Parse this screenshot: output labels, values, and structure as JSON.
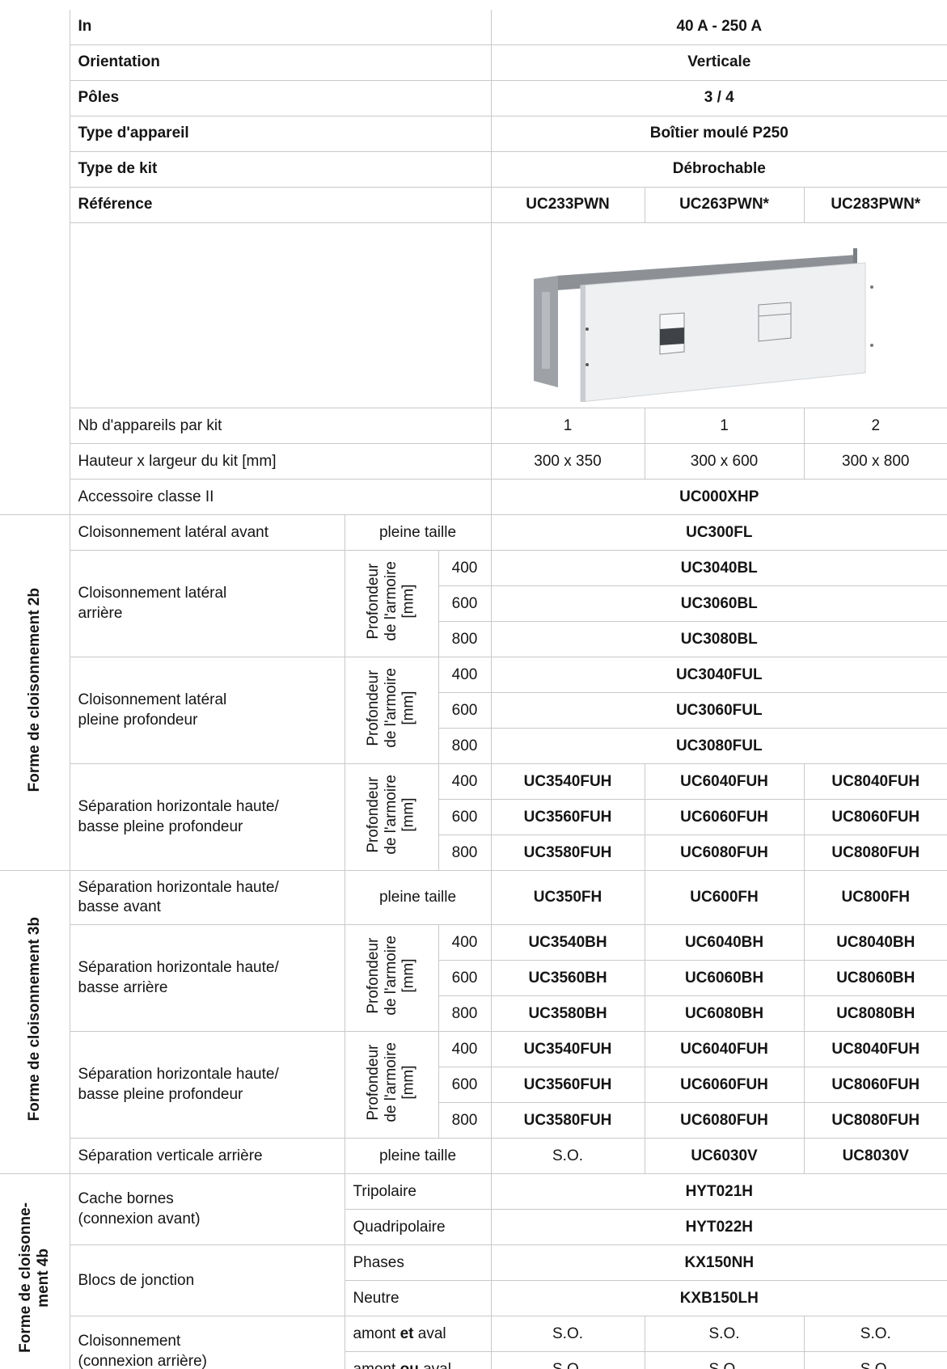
{
  "specs": [
    {
      "label": "In",
      "value": "40 A - 250 A"
    },
    {
      "label": "Orientation",
      "value": "Verticale"
    },
    {
      "label": "Pôles",
      "value": "3 / 4"
    },
    {
      "label": "Type d'appareil",
      "value": "Boîtier moulé P250"
    },
    {
      "label": "Type de kit",
      "value": "Débrochable"
    }
  ],
  "reference": {
    "label": "Référence",
    "values": [
      "UC233PWN",
      "UC263PWN*",
      "UC283PWN*"
    ]
  },
  "kit_rows": [
    {
      "label": "Nb d'appareils par kit",
      "values": [
        "1",
        "1",
        "2"
      ]
    },
    {
      "label": "Hauteur x largeur du kit [mm]",
      "values": [
        "300 x 350",
        "300 x 600",
        "300 x 800"
      ]
    }
  ],
  "accessory": {
    "label": "Accessoire classe II",
    "value": "UC000XHP"
  },
  "full_size": "pleine taille",
  "depth_label": "Profondeur\nde l'armoire\n[mm]",
  "depths": [
    "400",
    "600",
    "800"
  ],
  "form_2b": {
    "title": "Forme de cloisonnement 2b",
    "front_lateral": {
      "label": "Cloisonnement latéral avant",
      "value": "UC300FL"
    },
    "rear_lateral": {
      "label": "Cloisonnement latéral\narrière",
      "values": [
        "UC3040BL",
        "UC3060BL",
        "UC3080BL"
      ]
    },
    "full_lateral": {
      "label": "Cloisonnement latéral\npleine profondeur",
      "values": [
        "UC3040FUL",
        "UC3060FUL",
        "UC3080FUL"
      ]
    },
    "horizontal_full": {
      "label": "Séparation horizontale haute/\nbasse pleine profondeur",
      "values": [
        [
          "UC3540FUH",
          "UC6040FUH",
          "UC8040FUH"
        ],
        [
          "UC3560FUH",
          "UC6060FUH",
          "UC8060FUH"
        ],
        [
          "UC3580FUH",
          "UC6080FUH",
          "UC8080FUH"
        ]
      ]
    }
  },
  "form_3b": {
    "title": "Forme de cloisonnement 3b",
    "front_horizontal": {
      "label": "Séparation horizontale haute/\nbasse avant",
      "values": [
        "UC350FH",
        "UC600FH",
        "UC800FH"
      ]
    },
    "rear_horizontal": {
      "label": "Séparation horizontale haute/\nbasse arrière",
      "values": [
        [
          "UC3540BH",
          "UC6040BH",
          "UC8040BH"
        ],
        [
          "UC3560BH",
          "UC6060BH",
          "UC8060BH"
        ],
        [
          "UC3580BH",
          "UC6080BH",
          "UC8080BH"
        ]
      ]
    },
    "horizontal_full": {
      "label": "Séparation horizontale haute/\nbasse pleine profondeur",
      "values": [
        [
          "UC3540FUH",
          "UC6040FUH",
          "UC8040FUH"
        ],
        [
          "UC3560FUH",
          "UC6060FUH",
          "UC8060FUH"
        ],
        [
          "UC3580FUH",
          "UC6080FUH",
          "UC8080FUH"
        ]
      ]
    },
    "vertical_rear": {
      "label": "Séparation verticale arrière",
      "values": [
        "S.O.",
        "UC6030V",
        "UC8030V"
      ]
    }
  },
  "form_4b": {
    "title": "Forme de cloisonne-\nment 4b",
    "terminal_covers": {
      "label": "Cache bornes\n(connexion avant)",
      "options": [
        {
          "label": "Tripolaire",
          "value": "HYT021H"
        },
        {
          "label": "Quadripolaire",
          "value": "HYT022H"
        }
      ]
    },
    "junction_blocks": {
      "label": "Blocs de jonction",
      "options": [
        {
          "label": "Phases",
          "value": "KX150NH"
        },
        {
          "label": "Neutre",
          "value": "KXB150LH"
        }
      ]
    },
    "rear_partition": {
      "label": "Cloisonnement\n(connexion arrière)",
      "options": [
        {
          "parts": [
            "amont",
            "et",
            "aval"
          ],
          "values": [
            "S.O.",
            "S.O.",
            "S.O."
          ]
        },
        {
          "parts": [
            "amont",
            "ou",
            "aval"
          ],
          "values": [
            "S.O.",
            "S.O.",
            "S.O."
          ]
        }
      ]
    }
  }
}
